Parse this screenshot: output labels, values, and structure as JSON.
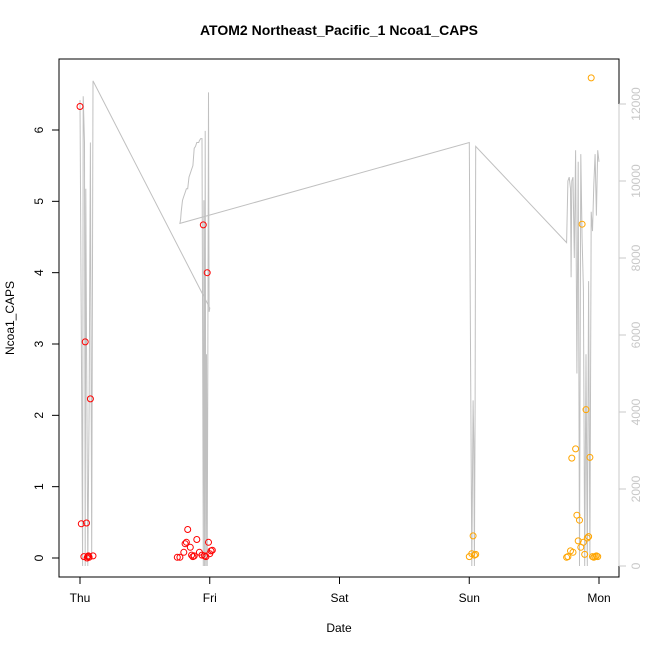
{
  "chart_data": {
    "type": "scatter",
    "title": "ATOM2 Northeast_Pacific_1 Ncoa1_CAPS",
    "xlabel": "Date",
    "ylabel": "Ncoa1_CAPS",
    "x_ticks": [
      "Thu",
      "Fri",
      "Sat",
      "Sun",
      "Mon"
    ],
    "xlim": [
      0,
      4.05
    ],
    "ylim": [
      0,
      6.7
    ],
    "y_ticks": [
      0,
      1,
      2,
      3,
      4,
      5,
      6
    ],
    "y2lim": [
      0,
      12500
    ],
    "y2_ticks": [
      0,
      2000,
      4000,
      6000,
      8000,
      10000,
      12000
    ],
    "grid": false,
    "series": [
      {
        "color": "#ff0000",
        "x": [
          0.0,
          0.01,
          0.03,
          0.04,
          0.05,
          0.055,
          0.06,
          0.065,
          0.07,
          0.08,
          0.1,
          0.75,
          0.77,
          0.8,
          0.81,
          0.82,
          0.83,
          0.85,
          0.86,
          0.87,
          0.88,
          0.9,
          0.92,
          0.94,
          0.95,
          0.96,
          0.97,
          0.98,
          0.99,
          1.0,
          1.01,
          1.02
        ],
        "y": [
          6.33,
          0.48,
          0.02,
          3.03,
          0.49,
          0.0,
          0.02,
          0.03,
          0.01,
          2.23,
          0.03,
          0.01,
          0.01,
          0.08,
          0.2,
          0.22,
          0.4,
          0.15,
          0.04,
          0.02,
          0.03,
          0.26,
          0.08,
          0.04,
          4.67,
          0.03,
          0.02,
          4.0,
          0.22,
          0.06,
          0.1,
          0.11
        ]
      },
      {
        "color": "#ffa500",
        "x": [
          3.0,
          3.02,
          3.03,
          3.04,
          3.05,
          3.75,
          3.76,
          3.78,
          3.79,
          3.8,
          3.82,
          3.83,
          3.84,
          3.85,
          3.86,
          3.87,
          3.88,
          3.89,
          3.9,
          3.91,
          3.92,
          3.93,
          3.94,
          3.95,
          3.96,
          3.97,
          3.98,
          3.99
        ],
        "y": [
          0.02,
          0.06,
          0.31,
          0.04,
          0.05,
          0.01,
          0.02,
          0.1,
          1.4,
          0.08,
          1.53,
          0.6,
          0.24,
          0.53,
          0.15,
          4.68,
          0.22,
          0.05,
          2.08,
          0.28,
          0.3,
          1.41,
          6.73,
          0.02,
          0.01,
          0.02,
          0.03,
          0.02
        ]
      }
    ],
    "secondary_line": {
      "color": "#c0c0c0",
      "axis": "right",
      "x": [
        0.0,
        0.02,
        0.025,
        0.035,
        0.04,
        0.045,
        0.05,
        0.06,
        0.07,
        0.08,
        0.09,
        0.1,
        1.0,
        0.995,
        0.99,
        0.985,
        0.98,
        0.975,
        0.97,
        0.965,
        0.96,
        0.955,
        0.95,
        0.945,
        0.94,
        0.93,
        0.92,
        0.915,
        0.91,
        0.9,
        0.89,
        0.88,
        0.87,
        0.86,
        0.85,
        0.84,
        0.83,
        0.82,
        0.81,
        0.8,
        0.79,
        0.78,
        0.775,
        0.77,
        3.0,
        3.02,
        3.03,
        3.035,
        3.04,
        3.045,
        3.05,
        3.75,
        3.76,
        3.77,
        3.78,
        3.785,
        3.79,
        3.8,
        3.81,
        3.82,
        3.83,
        3.84,
        3.85,
        3.86,
        3.87,
        3.88,
        3.89,
        3.9,
        3.91,
        3.92,
        3.93,
        3.94,
        3.95,
        3.96,
        3.97,
        3.98,
        3.99,
        4.0
      ],
      "y": [
        12100,
        0,
        12200,
        11000,
        0,
        9800,
        6000,
        0,
        4000,
        11000,
        200,
        12600,
        6700,
        6600,
        12300,
        5000,
        0,
        5500,
        0,
        11300,
        0,
        9500,
        0,
        6200,
        11100,
        11100,
        11050,
        11000,
        11000,
        11000,
        10900,
        10850,
        10400,
        10300,
        10200,
        10100,
        9800,
        9800,
        9700,
        9600,
        9500,
        9200,
        9000,
        8900,
        11000,
        0,
        4300,
        3200,
        0,
        4100,
        10900,
        8400,
        10000,
        10100,
        9800,
        7500,
        10000,
        10100,
        8000,
        10800,
        5000,
        10500,
        0,
        10700,
        8500,
        7200,
        0,
        5500,
        0,
        7400,
        200,
        9200,
        8700,
        9900,
        10700,
        9100,
        10800,
        10500
      ]
    }
  }
}
